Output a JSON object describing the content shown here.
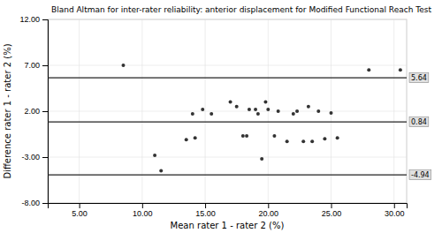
{
  "chart_data": {
    "type": "scatter",
    "title": "Bland Altman for inter-rater reliability: anterior displacement for Modified Functional Reach Test",
    "x_label": "Mean rater 1 - rater 2 (%)",
    "y_label": "Difference rater 1 - rater 2 (%)",
    "x": [
      8.5,
      11.0,
      11.5,
      13.5,
      14.0,
      14.2,
      14.8,
      15.5,
      17.0,
      17.5,
      18.0,
      18.3,
      18.5,
      19.0,
      19.2,
      19.5,
      19.8,
      20.0,
      20.5,
      20.8,
      21.5,
      22.0,
      22.3,
      22.8,
      23.2,
      23.5,
      24.0,
      24.5,
      25.0,
      25.5,
      28.0,
      30.5
    ],
    "values": [
      7.0,
      -2.8,
      -4.5,
      -1.1,
      1.7,
      -0.9,
      2.2,
      1.7,
      3.0,
      2.5,
      -0.7,
      -0.7,
      2.2,
      2.2,
      1.7,
      -3.2,
      3.0,
      2.2,
      -0.7,
      2.0,
      -1.3,
      1.7,
      2.0,
      -1.3,
      2.5,
      -1.3,
      2.0,
      -1.0,
      1.8,
      -0.9,
      6.5,
      6.5
    ],
    "color": "#333333",
    "hlines": [
      {
        "value": 5.64,
        "label": "5.64",
        "color": "#222222"
      },
      {
        "value": 0.84,
        "label": "0.84",
        "color": "#222222"
      },
      {
        "value": -4.94,
        "label": "-4.94",
        "color": "#222222"
      }
    ],
    "xlim": [
      2.5,
      31.0
    ],
    "ylim": [
      -8.0,
      12.0
    ],
    "xticks": [
      {
        "value": 5.0,
        "label": "5.00"
      },
      {
        "value": 10.0,
        "label": "10.00"
      },
      {
        "value": 15.0,
        "label": "15.00"
      },
      {
        "value": 20.0,
        "label": "20.00"
      },
      {
        "value": 25.0,
        "label": "25.00"
      },
      {
        "value": 30.0,
        "label": "30.00"
      }
    ],
    "yticks": [
      {
        "value": -8.0,
        "label": "-8.00"
      },
      {
        "value": -3.0,
        "label": "-3.00"
      },
      {
        "value": 2.0,
        "label": "2.00"
      },
      {
        "value": 7.0,
        "label": "7.00"
      },
      {
        "value": 12.0,
        "label": "12.00"
      }
    ],
    "grid": true
  }
}
